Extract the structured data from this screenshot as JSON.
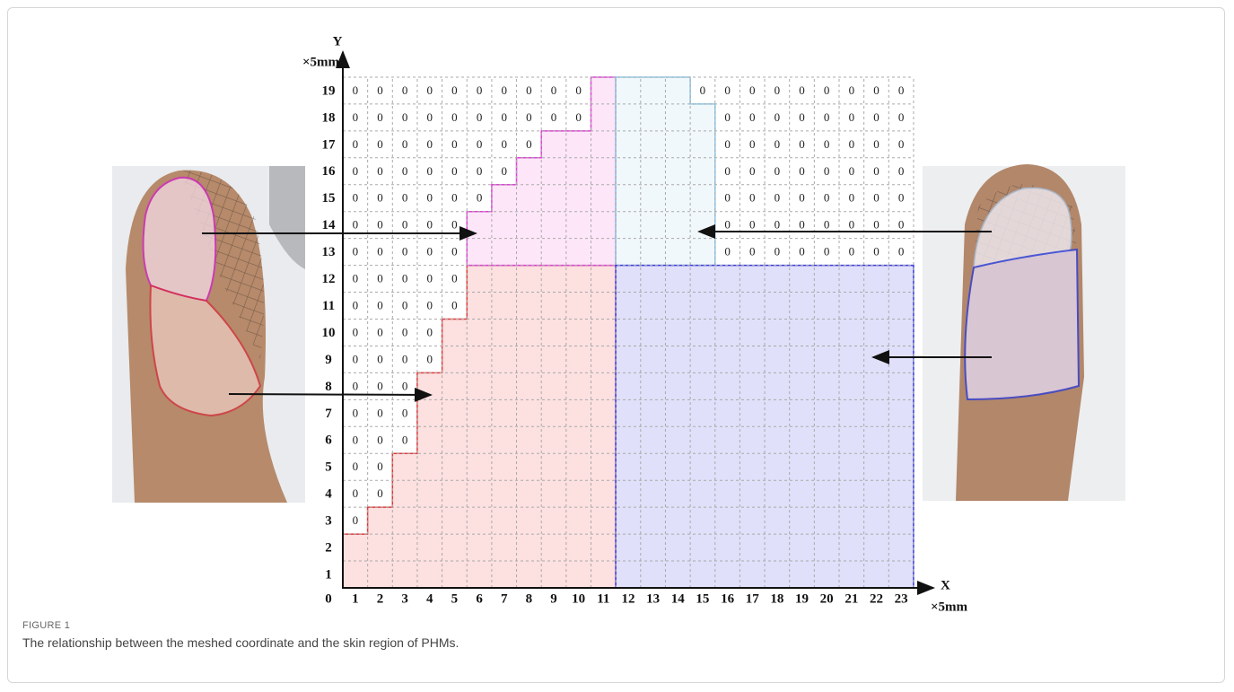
{
  "figure": {
    "y_axis": {
      "name": "Y",
      "unit": "×5mm",
      "ticks": [
        "1",
        "2",
        "3",
        "4",
        "5",
        "6",
        "7",
        "8",
        "9",
        "10",
        "11",
        "12",
        "13",
        "14",
        "15",
        "16",
        "17",
        "18",
        "19"
      ]
    },
    "x_axis": {
      "name": "X",
      "unit": "×5mm",
      "ticks": [
        "1",
        "2",
        "3",
        "4",
        "5",
        "6",
        "7",
        "8",
        "9",
        "10",
        "11",
        "12",
        "13",
        "14",
        "15",
        "16",
        "17",
        "18",
        "19",
        "20",
        "21",
        "22",
        "23"
      ]
    },
    "origin": "0",
    "grid": {
      "rows": [
        [
          null,
          null,
          null,
          null,
          null,
          null,
          null,
          null,
          null,
          null,
          null,
          null,
          null,
          null,
          null,
          null,
          null,
          null,
          null,
          null,
          null,
          null,
          null
        ],
        [
          null,
          null,
          null,
          null,
          null,
          null,
          null,
          null,
          null,
          null,
          null,
          null,
          null,
          null,
          null,
          null,
          null,
          null,
          null,
          null,
          null,
          null,
          null
        ],
        [
          "0",
          null,
          null,
          null,
          null,
          null,
          null,
          null,
          null,
          null,
          null,
          null,
          null,
          null,
          null,
          null,
          null,
          null,
          null,
          null,
          null,
          null,
          null
        ],
        [
          "0",
          "0",
          null,
          null,
          null,
          null,
          null,
          null,
          null,
          null,
          null,
          null,
          null,
          null,
          null,
          null,
          null,
          null,
          null,
          null,
          null,
          null,
          null
        ],
        [
          "0",
          "0",
          null,
          null,
          null,
          null,
          null,
          null,
          null,
          null,
          null,
          null,
          null,
          null,
          null,
          null,
          null,
          null,
          null,
          null,
          null,
          null,
          null
        ],
        [
          "0",
          "0",
          "0",
          null,
          null,
          null,
          null,
          null,
          null,
          null,
          null,
          null,
          null,
          null,
          null,
          null,
          null,
          null,
          null,
          null,
          null,
          null,
          null
        ],
        [
          "0",
          "0",
          "0",
          null,
          null,
          null,
          null,
          null,
          null,
          null,
          null,
          null,
          null,
          null,
          null,
          null,
          null,
          null,
          null,
          null,
          null,
          null,
          null
        ],
        [
          "0",
          "0",
          "0",
          null,
          null,
          null,
          null,
          null,
          null,
          null,
          null,
          null,
          null,
          null,
          null,
          null,
          null,
          null,
          null,
          null,
          null,
          null,
          null
        ],
        [
          "0",
          "0",
          "0",
          "0",
          null,
          null,
          null,
          null,
          null,
          null,
          null,
          null,
          null,
          null,
          null,
          null,
          null,
          null,
          null,
          null,
          null,
          null,
          null
        ],
        [
          "0",
          "0",
          "0",
          "0",
          null,
          null,
          null,
          null,
          null,
          null,
          null,
          null,
          null,
          null,
          null,
          null,
          null,
          null,
          null,
          null,
          null,
          null,
          null
        ],
        [
          "0",
          "0",
          "0",
          "0",
          "0",
          null,
          null,
          null,
          null,
          null,
          null,
          null,
          null,
          null,
          null,
          null,
          null,
          null,
          null,
          null,
          null,
          null,
          null
        ],
        [
          "0",
          "0",
          "0",
          "0",
          "0",
          null,
          null,
          null,
          null,
          null,
          null,
          null,
          null,
          null,
          null,
          null,
          null,
          null,
          null,
          null,
          null,
          null,
          null
        ],
        [
          "0",
          "0",
          "0",
          "0",
          "0",
          null,
          null,
          null,
          null,
          null,
          null,
          null,
          null,
          null,
          null,
          "0",
          "0",
          "0",
          "0",
          "0",
          "0",
          "0",
          "0"
        ],
        [
          "0",
          "0",
          "0",
          "0",
          "0",
          null,
          null,
          null,
          null,
          null,
          null,
          null,
          null,
          null,
          null,
          "0",
          "0",
          "0",
          "0",
          "0",
          "0",
          "0",
          "0"
        ],
        [
          "0",
          "0",
          "0",
          "0",
          "0",
          "0",
          null,
          null,
          null,
          null,
          null,
          null,
          null,
          null,
          null,
          "0",
          "0",
          "0",
          "0",
          "0",
          "0",
          "0",
          "0"
        ],
        [
          "0",
          "0",
          "0",
          "0",
          "0",
          "0",
          "0",
          null,
          null,
          null,
          null,
          null,
          null,
          null,
          null,
          "0",
          "0",
          "0",
          "0",
          "0",
          "0",
          "0",
          "0"
        ],
        [
          "0",
          "0",
          "0",
          "0",
          "0",
          "0",
          "0",
          "0",
          null,
          null,
          null,
          null,
          null,
          null,
          null,
          "0",
          "0",
          "0",
          "0",
          "0",
          "0",
          "0",
          "0"
        ],
        [
          "0",
          "0",
          "0",
          "0",
          "0",
          "0",
          "0",
          "0",
          "0",
          "0",
          null,
          null,
          null,
          null,
          null,
          "0",
          "0",
          "0",
          "0",
          "0",
          "0",
          "0",
          "0"
        ],
        [
          "0",
          "0",
          "0",
          "0",
          "0",
          "0",
          "0",
          "0",
          "0",
          "0",
          null,
          null,
          null,
          null,
          "0",
          "0",
          "0",
          "0",
          "0",
          "0",
          "0",
          "0",
          "0"
        ]
      ]
    }
  },
  "caption": {
    "label": "FIGURE 1",
    "text": "The relationship between the meshed coordinate and the skin region of PHMs."
  }
}
